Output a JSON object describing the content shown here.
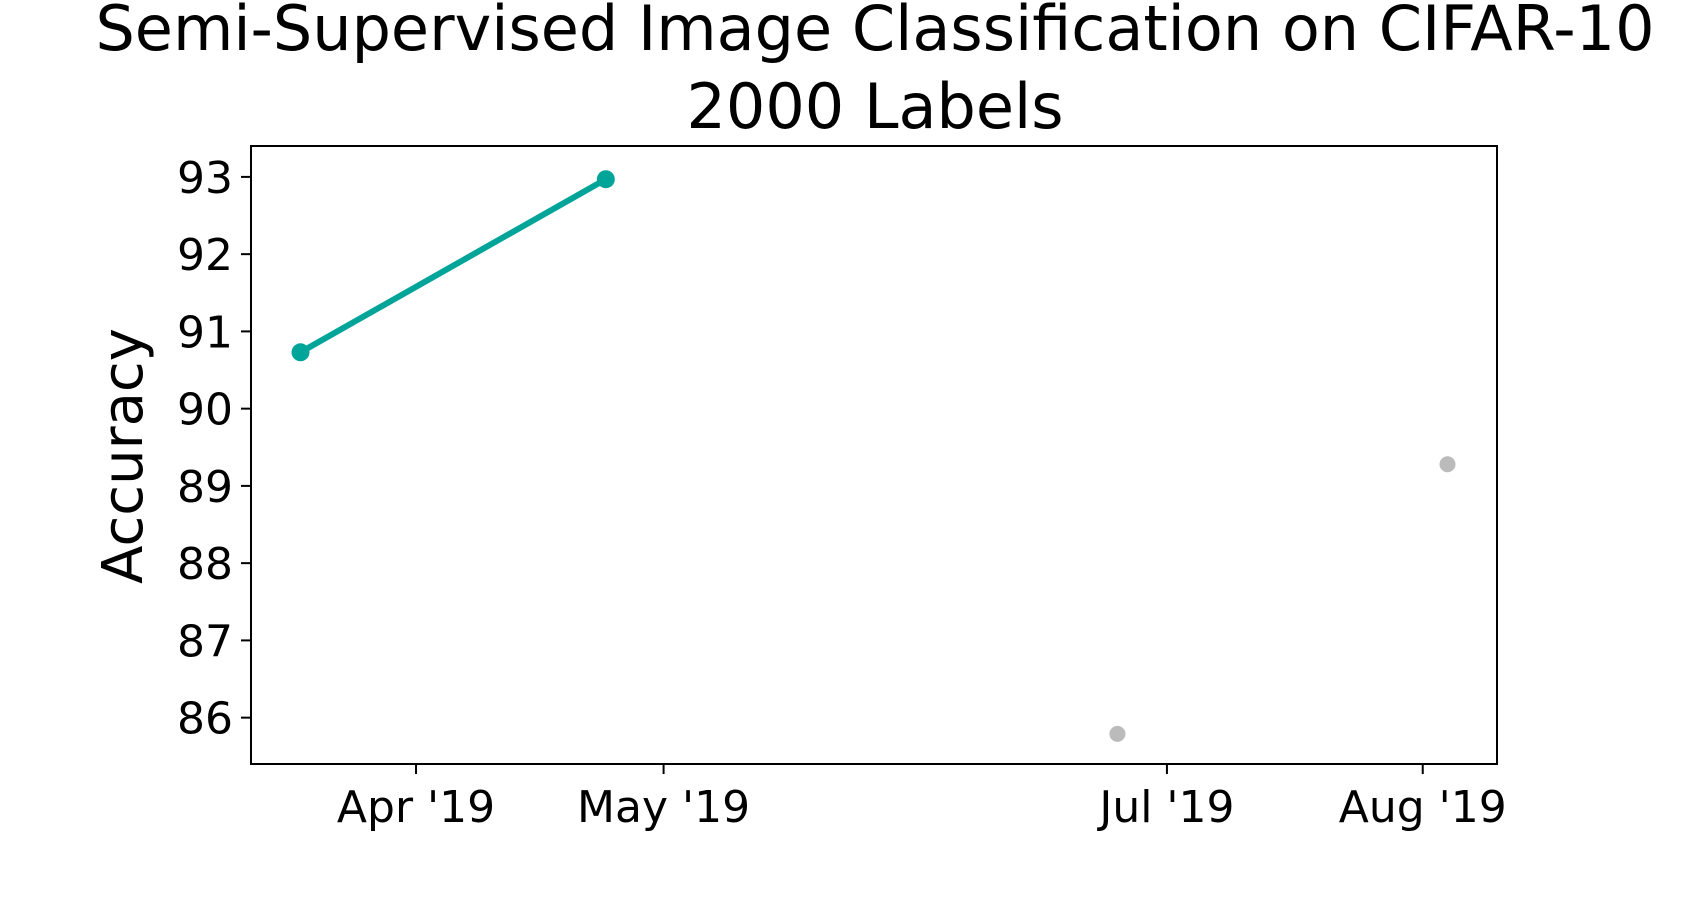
{
  "chart_data": {
    "type": "line",
    "title_line1": "Semi-Supervised Image Classification on CIFAR-10",
    "title_line2": "2000 Labels",
    "xlabel": "",
    "ylabel": "Accuracy",
    "x_tick_labels": [
      "Apr '19",
      "May '19",
      "Jul '19",
      "Aug '19"
    ],
    "x_tick_dates": [
      "2019-04-01",
      "2019-05-01",
      "2019-07-01",
      "2019-08-01"
    ],
    "xlim": [
      "2019-03-12",
      "2019-08-10"
    ],
    "ylim": [
      85.4,
      93.4
    ],
    "y_ticks": [
      86,
      87,
      88,
      89,
      90,
      91,
      92,
      93
    ],
    "grid": false,
    "colors": {
      "sota": "#00a499",
      "other": "#bbbbbb",
      "axis": "#000000"
    },
    "series": [
      {
        "style": "line-with-markers",
        "color": "#00a499",
        "points": [
          {
            "x": "2019-03-18",
            "y": 90.73
          },
          {
            "x": "2019-04-24",
            "y": 92.97
          }
        ]
      },
      {
        "style": "markers-only",
        "color": "#bbbbbb",
        "points": [
          {
            "x": "2019-06-25",
            "y": 85.79
          },
          {
            "x": "2019-08-04",
            "y": 89.28
          }
        ]
      }
    ]
  }
}
